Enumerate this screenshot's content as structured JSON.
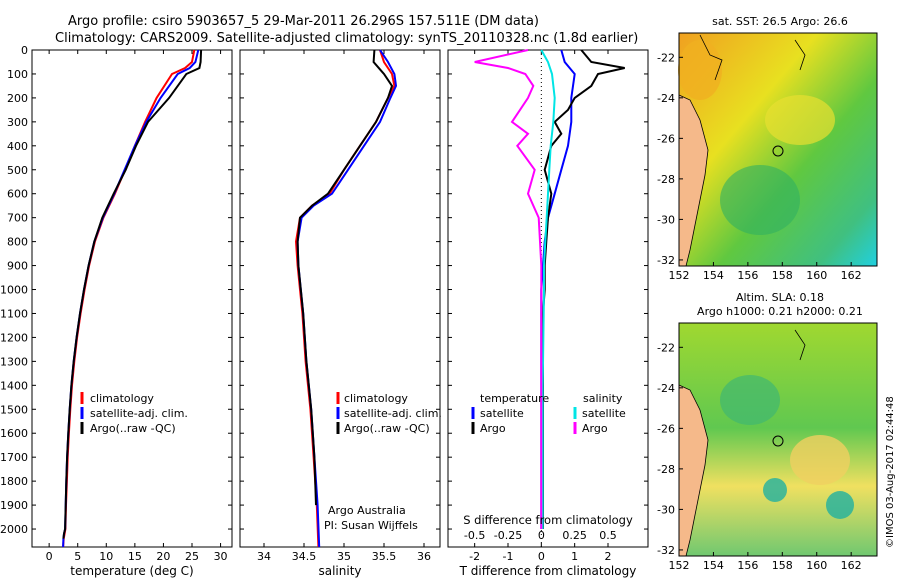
{
  "title": {
    "line1": "Argo profile: csiro 5903657_5 29-Mar-2011 26.296S 157.511E (DM data)",
    "line2": "Climatology: CARS2009. Satellite-adjusted climatology: synTS_20110328.nc (1.8d earlier)"
  },
  "colors": {
    "climatology": "#ff0000",
    "satellite": "#0000ff",
    "argo": "#000000",
    "sat_salinity": "#00e5e5",
    "argo_salinity": "#ff00ff",
    "land": "#f5b98a"
  },
  "chart_data": [
    {
      "type": "line",
      "id": "temperature",
      "xlabel": "temperature (deg C)",
      "ylabel": "",
      "xlim": [
        -3,
        32
      ],
      "ylim": [
        0,
        2075
      ],
      "xticks": [
        0,
        5,
        10,
        15,
        20,
        25,
        30
      ],
      "yticks": [
        0,
        100,
        200,
        300,
        400,
        500,
        600,
        700,
        800,
        900,
        1000,
        1100,
        1200,
        1300,
        1400,
        1500,
        1600,
        1700,
        1800,
        1900,
        2000
      ],
      "legend": [
        "climatology",
        "satellite-adj. clim.",
        "Argo(..raw -QC)"
      ],
      "series": [
        {
          "name": "climatology",
          "x": [
            25.4,
            25.0,
            23.8,
            21.5,
            18.8,
            16.8,
            15.0,
            13.3,
            11.5,
            9.5,
            8.0,
            7.0,
            6.2,
            5.5,
            4.9,
            4.4,
            4.0,
            3.7,
            3.45,
            3.25,
            3.1,
            2.95,
            2.85,
            2.7,
            2.55,
            2.45
          ],
          "y": [
            0,
            50,
            75,
            100,
            200,
            300,
            400,
            500,
            600,
            700,
            800,
            900,
            1000,
            1100,
            1200,
            1300,
            1400,
            1500,
            1600,
            1700,
            1800,
            1900,
            2000,
            2020,
            2040,
            2075
          ]
        },
        {
          "name": "satellite-adj. clim.",
          "x": [
            26.1,
            25.6,
            24.6,
            22.5,
            19.5,
            17.0,
            15.0,
            13.2,
            11.4,
            9.4,
            7.9,
            6.9,
            6.1,
            5.4,
            4.8,
            4.3,
            3.9,
            3.6,
            3.35,
            3.15,
            3.0,
            2.9,
            2.8,
            2.6,
            2.5,
            2.45
          ],
          "y": [
            0,
            50,
            75,
            100,
            200,
            300,
            400,
            500,
            600,
            700,
            800,
            900,
            1000,
            1100,
            1200,
            1300,
            1400,
            1500,
            1600,
            1700,
            1800,
            1900,
            2000,
            2020,
            2040,
            2075
          ]
        },
        {
          "name": "Argo(..raw -QC)",
          "x": [
            26.6,
            26.5,
            26.3,
            24.0,
            21.0,
            17.3,
            15.2,
            13.4,
            11.3,
            9.3,
            7.9,
            6.9,
            6.1,
            5.4,
            4.8,
            4.3,
            3.9,
            3.6,
            3.35,
            3.15,
            3.0,
            2.9,
            2.8,
            2.6,
            2.5
          ],
          "y": [
            0,
            50,
            75,
            100,
            200,
            300,
            400,
            500,
            600,
            700,
            800,
            900,
            1000,
            1100,
            1200,
            1300,
            1400,
            1500,
            1600,
            1700,
            1800,
            1900,
            2000,
            2020,
            2040
          ]
        }
      ]
    },
    {
      "type": "line",
      "id": "salinity",
      "xlabel": "salinity",
      "ylabel": "",
      "xlim": [
        33.7,
        36.2
      ],
      "ylim": [
        0,
        2075
      ],
      "xticks": [
        34,
        34.5,
        35,
        35.5,
        36
      ],
      "legend": [
        "climatology",
        "satellite-adj. clim.",
        "Argo(..raw -QC)"
      ],
      "series": [
        {
          "name": "climatology",
          "x": [
            35.45,
            35.5,
            35.6,
            35.63,
            35.55,
            35.4,
            35.2,
            35.0,
            34.82,
            34.6,
            34.45,
            34.4,
            34.42,
            34.45,
            34.48,
            34.5,
            34.52,
            34.55,
            34.58,
            34.6,
            34.62,
            34.64,
            34.66,
            34.68
          ],
          "y": [
            0,
            50,
            100,
            150,
            200,
            300,
            400,
            500,
            600,
            650,
            700,
            800,
            900,
            1000,
            1100,
            1200,
            1300,
            1400,
            1500,
            1600,
            1700,
            1800,
            1900,
            2075
          ]
        },
        {
          "name": "satellite-adj. clim.",
          "x": [
            35.45,
            35.55,
            35.63,
            35.65,
            35.58,
            35.45,
            35.25,
            35.05,
            34.85,
            34.62,
            34.47,
            34.42,
            34.43,
            34.46,
            34.49,
            34.51,
            34.53,
            34.56,
            34.59,
            34.61,
            34.63,
            34.65,
            34.67,
            34.69
          ],
          "y": [
            0,
            50,
            100,
            150,
            200,
            300,
            400,
            500,
            600,
            650,
            700,
            800,
            900,
            1000,
            1100,
            1200,
            1300,
            1400,
            1500,
            1600,
            1700,
            1800,
            1900,
            2075
          ]
        },
        {
          "name": "Argo(..raw -QC)",
          "x": [
            35.38,
            35.37,
            35.5,
            35.6,
            35.55,
            35.4,
            35.2,
            35.0,
            34.8,
            34.6,
            34.45,
            34.42,
            34.43,
            34.46,
            34.49,
            34.51,
            34.53,
            34.56,
            34.59,
            34.61,
            34.63,
            34.64,
            34.65
          ],
          "y": [
            0,
            50,
            100,
            150,
            200,
            300,
            400,
            500,
            600,
            650,
            700,
            800,
            900,
            1000,
            1100,
            1200,
            1300,
            1400,
            1500,
            1600,
            1700,
            1800,
            1900
          ]
        }
      ],
      "annotation": [
        "Argo Australia",
        "PI: Susan Wijffels"
      ]
    },
    {
      "type": "line",
      "id": "difference",
      "xlabel": "T difference from climatology",
      "title_bottom": "S difference from climatology",
      "xlim": [
        -2.8,
        3.2
      ],
      "ylim": [
        0,
        2075
      ],
      "xticks": [
        -2,
        -1,
        0,
        1,
        2
      ],
      "x2ticks": [
        "-0.5",
        "-0.25",
        "0",
        "0.25",
        "0.5"
      ],
      "x2values": [
        -0.5,
        -0.25,
        0,
        0.25,
        0.5
      ],
      "legend_headers": [
        "temperature",
        "salinity"
      ],
      "legend": [
        "satellite",
        "Argo",
        "satellite",
        "Argo"
      ],
      "series": [
        {
          "name": "temperature satellite",
          "x": [
            0.6,
            0.7,
            1.0,
            0.9,
            0.9,
            0.8,
            0.6,
            0.4,
            0.2,
            0.1,
            0.05,
            0,
            0,
            0,
            0,
            0,
            0,
            0,
            0,
            0,
            0
          ],
          "y": [
            0,
            50,
            100,
            200,
            300,
            400,
            500,
            600,
            700,
            800,
            900,
            1000,
            1100,
            1200,
            1300,
            1400,
            1500,
            1600,
            1700,
            1800,
            2000
          ]
        },
        {
          "name": "temperature Argo",
          "x": [
            1.2,
            1.5,
            2.5,
            1.7,
            1.5,
            1.0,
            0.8,
            0.4,
            0.6,
            0.3,
            0.1,
            0.3,
            0.2,
            0.15,
            0.1,
            0.1,
            0.05,
            0.05,
            0.05,
            0.05,
            0.05
          ],
          "y": [
            0,
            50,
            75,
            100,
            150,
            200,
            250,
            300,
            350,
            400,
            500,
            600,
            700,
            800,
            900,
            1000,
            1100,
            1200,
            1500,
            1800,
            2000
          ]
        },
        {
          "name": "salinity satellite",
          "x": [
            0.0,
            0.05,
            0.08,
            0.1,
            0.09,
            0.07,
            0.06,
            0.05,
            0.04,
            0.03,
            0.02,
            0.02,
            0.01,
            0.01
          ],
          "y": [
            0,
            50,
            100,
            200,
            300,
            400,
            500,
            600,
            700,
            800,
            900,
            1000,
            1400,
            2000
          ]
        },
        {
          "name": "salinity Argo",
          "x": [
            -0.1,
            -0.5,
            -0.25,
            -0.12,
            -0.06,
            -0.1,
            -0.22,
            -0.1,
            -0.18,
            -0.05,
            -0.1,
            -0.02,
            -0.01,
            0,
            0,
            0,
            0
          ],
          "y": [
            0,
            50,
            75,
            100,
            150,
            200,
            300,
            350,
            400,
            500,
            600,
            700,
            800,
            900,
            1000,
            1500,
            2000
          ]
        }
      ]
    }
  ],
  "maps": [
    {
      "title": "sat. SST: 26.5 Argo: 26.6",
      "xticks": [
        "152",
        "154",
        "156",
        "158",
        "160",
        "162"
      ],
      "yticks": [
        "-22",
        "-24",
        "-26",
        "-28",
        "-30",
        "-32"
      ],
      "lon_range": [
        152,
        163.5
      ],
      "lat_range": [
        -20.8,
        -32.3
      ],
      "marker": {
        "lon": 157.5,
        "lat": -26.3
      }
    },
    {
      "title_line1": "Altim. SLA: 0.18",
      "title_line2": "Argo h1000: 0.21 h2000: 0.21",
      "xticks": [
        "152",
        "154",
        "156",
        "158",
        "160",
        "162"
      ],
      "yticks": [
        "-22",
        "-24",
        "-26",
        "-28",
        "-30",
        "-32"
      ],
      "lon_range": [
        152,
        163.5
      ],
      "lat_range": [
        -20.8,
        -32.3
      ],
      "marker": {
        "lon": 157.5,
        "lat": -26.3
      }
    }
  ],
  "credit": "©IMOS 03-Aug-2017 02:44:48"
}
